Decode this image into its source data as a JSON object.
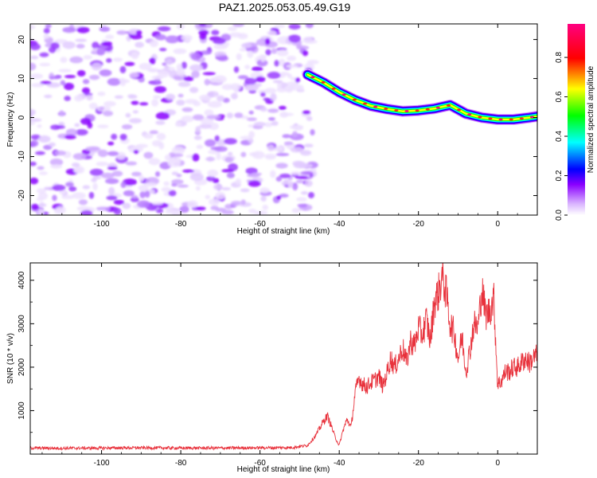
{
  "title": "PAZ1.2025.053.05.49.G19",
  "chart_data": [
    {
      "type": "heatmap",
      "title": "PAZ1.2025.053.05.49.G19",
      "xlabel": "Height of straight line (km)",
      "ylabel": "Frequency (Hz)",
      "xlim": [
        -118,
        10
      ],
      "ylim": [
        -25,
        24
      ],
      "x_ticks": [
        -100,
        -80,
        -60,
        -40,
        -20,
        0
      ],
      "y_ticks": [
        20,
        10,
        0,
        -10,
        -20
      ],
      "colorbar": {
        "label": "Normalized spectral amplitude",
        "range": [
          0,
          0.97
        ],
        "ticks": [
          0.0,
          0.2,
          0.4,
          0.6,
          0.8
        ],
        "colormap": [
          "#ffffff",
          "#8a00ff",
          "#0000ff",
          "#00ffff",
          "#00ff00",
          "#ffff00",
          "#ff0000",
          "#ff0080"
        ]
      },
      "noise_region_x": [
        -118,
        -48
      ],
      "ridge": {
        "x": [
          -48,
          -44,
          -40,
          -36,
          -32,
          -28,
          -24,
          -20,
          -16,
          -12,
          -8,
          -4,
          0,
          4,
          8,
          10
        ],
        "frequency": [
          11,
          9,
          6.5,
          4.5,
          3,
          2.2,
          1.6,
          1.8,
          2.3,
          3.2,
          1,
          0,
          -0.5,
          -0.5,
          0,
          0.3
        ]
      }
    },
    {
      "type": "line",
      "xlabel": "Height of straight line (km)",
      "ylabel": "SNR (10 * v/v)",
      "xlim": [
        -118,
        10
      ],
      "ylim": [
        0,
        4400
      ],
      "x_ticks": [
        -100,
        -80,
        -60,
        -40,
        -20,
        0
      ],
      "y_ticks": [
        1000,
        2000,
        3000,
        4000
      ],
      "color": "#e8323c",
      "series": [
        {
          "x": [
            -118,
            -110,
            -100,
            -90,
            -80,
            -70,
            -60,
            -52,
            -48,
            -46,
            -44,
            -43,
            -42,
            -41,
            -40,
            -39,
            -38,
            -37,
            -36,
            -35,
            -34,
            -33,
            -32,
            -31,
            -30,
            -29,
            -28,
            -27,
            -26,
            -25,
            -24,
            -23,
            -22,
            -21,
            -20,
            -19,
            -18,
            -17,
            -16,
            -15,
            -14,
            -13,
            -12,
            -11,
            -10,
            -9,
            -8,
            -7,
            -6,
            -5,
            -4,
            -3,
            -2,
            -1,
            0,
            1,
            2,
            3,
            4,
            5,
            6,
            7,
            8,
            9,
            10
          ],
          "values": [
            140,
            135,
            140,
            145,
            140,
            140,
            145,
            150,
            200,
            420,
            750,
            880,
            650,
            380,
            200,
            560,
            800,
            620,
            1400,
            1750,
            1600,
            1550,
            1650,
            1700,
            1800,
            1550,
            1850,
            2200,
            2000,
            2200,
            2450,
            2100,
            2600,
            2500,
            2900,
            2750,
            3100,
            2600,
            3500,
            3700,
            4100,
            3700,
            3000,
            2800,
            2200,
            2700,
            1900,
            2400,
            3000,
            2900,
            3800,
            3200,
            3300,
            3600,
            1600,
            1700,
            1900,
            1900,
            2000,
            2000,
            2100,
            2200,
            2100,
            2200,
            2300
          ]
        }
      ]
    }
  ]
}
